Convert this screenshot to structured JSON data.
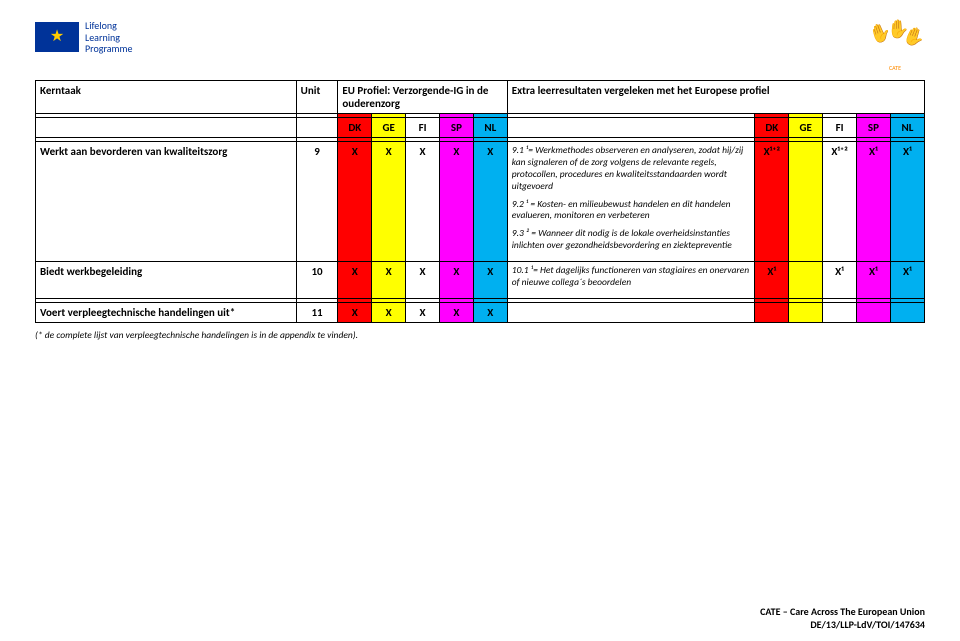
{
  "header": {
    "llp_line1": "Lifelong",
    "llp_line2": "Learning",
    "llp_line3": "Programme",
    "cate_label": "CATE"
  },
  "table": {
    "head": {
      "kerntaak": "Kerntaak",
      "unit": "Unit",
      "eu_profiel": "EU Profiel: Verzorgende-IG in de ouderenzorg",
      "extra": "Extra leerresultaten vergeleken met het Europese profiel",
      "dk": "DK",
      "ge": "GE",
      "fi": "FI",
      "sp": "SP",
      "nl": "NL"
    },
    "rows": [
      {
        "task": "Werkt aan bevorderen van kwaliteitszorg",
        "unit": "9",
        "marks": [
          "X",
          "X",
          "X",
          "X",
          "X"
        ],
        "desc": [
          "9.1 ¹= Werkmethodes observeren en analyseren, zodat hij/zij  kan signaleren of de zorg volgens de relevante regels, protocollen, procedures en kwaliteitsstandaarden wordt uitgevoerd",
          "9.2 ¹ = Kosten- en milieubewust handelen en dit handelen evalueren, monitoren en verbeteren",
          "9.3 ² = Wanneer dit nodig is de lokale overheidsinstanties inlichten over gezondheidsbevordering en ziektepreventie"
        ],
        "extra": [
          "X¹⁺²",
          "",
          "X¹⁺²",
          "X¹",
          "X¹"
        ]
      },
      {
        "task": "Biedt werkbegeleiding",
        "unit": "10",
        "marks": [
          "X",
          "X",
          "X",
          "X",
          "X"
        ],
        "desc": [
          "10.1 ¹= Het dagelijks functioneren van stagiaires en onervaren of nieuwe collega´s beoordelen"
        ],
        "extra": [
          "X¹",
          "",
          "X¹",
          "X¹",
          "X¹"
        ]
      },
      {
        "task": "Voert verpleegtechnische handelingen uit*",
        "unit": "11",
        "marks": [
          "X",
          "X",
          "X",
          "X",
          "X"
        ],
        "desc": [],
        "extra": [
          "",
          "",
          "",
          "",
          ""
        ]
      }
    ]
  },
  "footnote": "(* de complete lijst van verpleegtechnische handelingen is in de appendix te vinden).",
  "footer": {
    "line1": "CATE – Care Across The European Union",
    "line2": "DE/13/LLP-LdV/TOI/147634"
  }
}
